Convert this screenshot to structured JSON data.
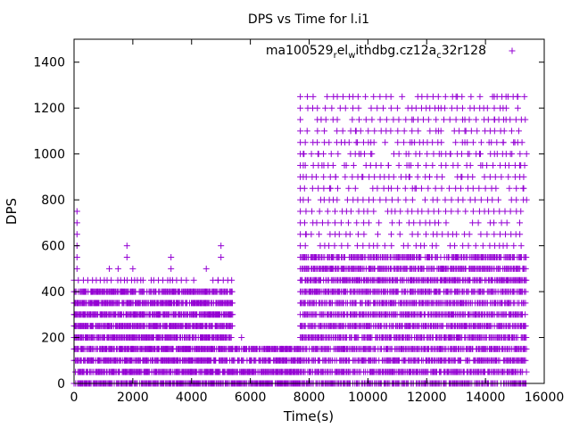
{
  "chart_data": {
    "type": "scatter",
    "title": "DPS vs Time for l.i1",
    "xlabel": "Time(s)",
    "ylabel": "DPS",
    "xlim": [
      0,
      16000
    ],
    "ylim": [
      0,
      1500
    ],
    "x_ticks": [
      "0",
      "2000",
      "4000",
      "6000",
      "8000",
      "10000",
      "12000",
      "14000",
      "16000"
    ],
    "y_ticks": [
      "0",
      "200",
      "400",
      "600",
      "800",
      "1000",
      "1200",
      "1400"
    ],
    "legend": {
      "position": "top-right",
      "label_parts": [
        "ma100529",
        "r",
        "el",
        "w",
        "ithdbg.cz12a",
        "c",
        "32r128"
      ]
    },
    "series": [
      {
        "name": "ma100529_rel_withdbg.cz12a_c32r128",
        "marker": "+",
        "color": "#9400D3",
        "density_bands": [
          {
            "x_range": [
              0,
              5400
            ],
            "y_levels": [
              0,
              50,
              100,
              150,
              200,
              250,
              300,
              350,
              400
            ],
            "spacing": 30
          },
          {
            "x_range": [
              0,
              5400
            ],
            "y_levels": [
              450
            ],
            "spacing": 130
          },
          {
            "x_range": [
              5400,
              7700
            ],
            "y_levels": [
              0,
              50,
              100,
              150
            ],
            "spacing": 30
          },
          {
            "x_range": [
              7700,
              15400
            ],
            "y_levels": [
              0,
              50,
              100,
              150,
              200,
              250,
              300,
              350,
              400,
              450,
              500,
              550
            ],
            "spacing": 40
          },
          {
            "x_range": [
              7700,
              15400
            ],
            "y_levels": [
              600,
              650,
              700,
              750,
              800,
              850,
              900,
              950,
              1000,
              1050,
              1100,
              1150,
              1200,
              1250
            ],
            "spacing": 200
          }
        ],
        "points": [
          [
            100,
            750
          ],
          [
            100,
            700
          ],
          [
            100,
            650
          ],
          [
            100,
            600
          ],
          [
            100,
            550
          ],
          [
            100,
            500
          ],
          [
            1800,
            600
          ],
          [
            1800,
            550
          ],
          [
            1500,
            500
          ],
          [
            1200,
            500
          ],
          [
            3300,
            550
          ],
          [
            3300,
            500
          ],
          [
            2000,
            500
          ],
          [
            4500,
            500
          ],
          [
            5000,
            600
          ],
          [
            5000,
            550
          ],
          [
            4900,
            450
          ],
          [
            5700,
            200
          ],
          [
            5400,
            150
          ],
          [
            7800,
            1000
          ],
          [
            7800,
            950
          ],
          [
            7800,
            900
          ],
          [
            7800,
            800
          ],
          [
            7900,
            650
          ],
          [
            8300,
            1000
          ],
          [
            8500,
            950
          ],
          [
            8700,
            850
          ],
          [
            8900,
            900
          ],
          [
            9200,
            950
          ],
          [
            9600,
            1100
          ],
          [
            9600,
            1050
          ],
          [
            9700,
            1000
          ],
          [
            9800,
            900
          ],
          [
            10100,
            1050
          ],
          [
            10100,
            1000
          ],
          [
            10700,
            950
          ],
          [
            10700,
            850
          ],
          [
            11300,
            1000
          ],
          [
            11500,
            1200
          ],
          [
            11500,
            1150
          ],
          [
            11500,
            1100
          ],
          [
            11500,
            1050
          ],
          [
            11400,
            950
          ],
          [
            11400,
            900
          ],
          [
            11600,
            850
          ],
          [
            12100,
            900
          ],
          [
            12400,
            1200
          ],
          [
            12400,
            1100
          ],
          [
            12500,
            1050
          ],
          [
            12500,
            1000
          ],
          [
            12200,
            950
          ],
          [
            12300,
            850
          ],
          [
            13000,
            1250
          ],
          [
            12800,
            1000
          ],
          [
            12900,
            950
          ],
          [
            13300,
            1150
          ],
          [
            13300,
            1100
          ],
          [
            13300,
            1050
          ],
          [
            13400,
            1000
          ],
          [
            13200,
            900
          ],
          [
            13800,
            1000
          ],
          [
            13900,
            950
          ],
          [
            14300,
            1250
          ],
          [
            14300,
            1200
          ],
          [
            14300,
            1150
          ],
          [
            14400,
            1000
          ],
          [
            14500,
            950
          ],
          [
            14600,
            1200
          ],
          [
            14600,
            1050
          ],
          [
            14700,
            1250
          ],
          [
            14700,
            1150
          ],
          [
            15100,
            1250
          ],
          [
            15100,
            1200
          ],
          [
            15000,
            1050
          ],
          [
            15200,
            950
          ],
          [
            15300,
            900
          ],
          [
            15300,
            850
          ],
          [
            14900,
            1000
          ],
          [
            14200,
            1050
          ],
          [
            15400,
            800
          ]
        ]
      }
    ]
  }
}
